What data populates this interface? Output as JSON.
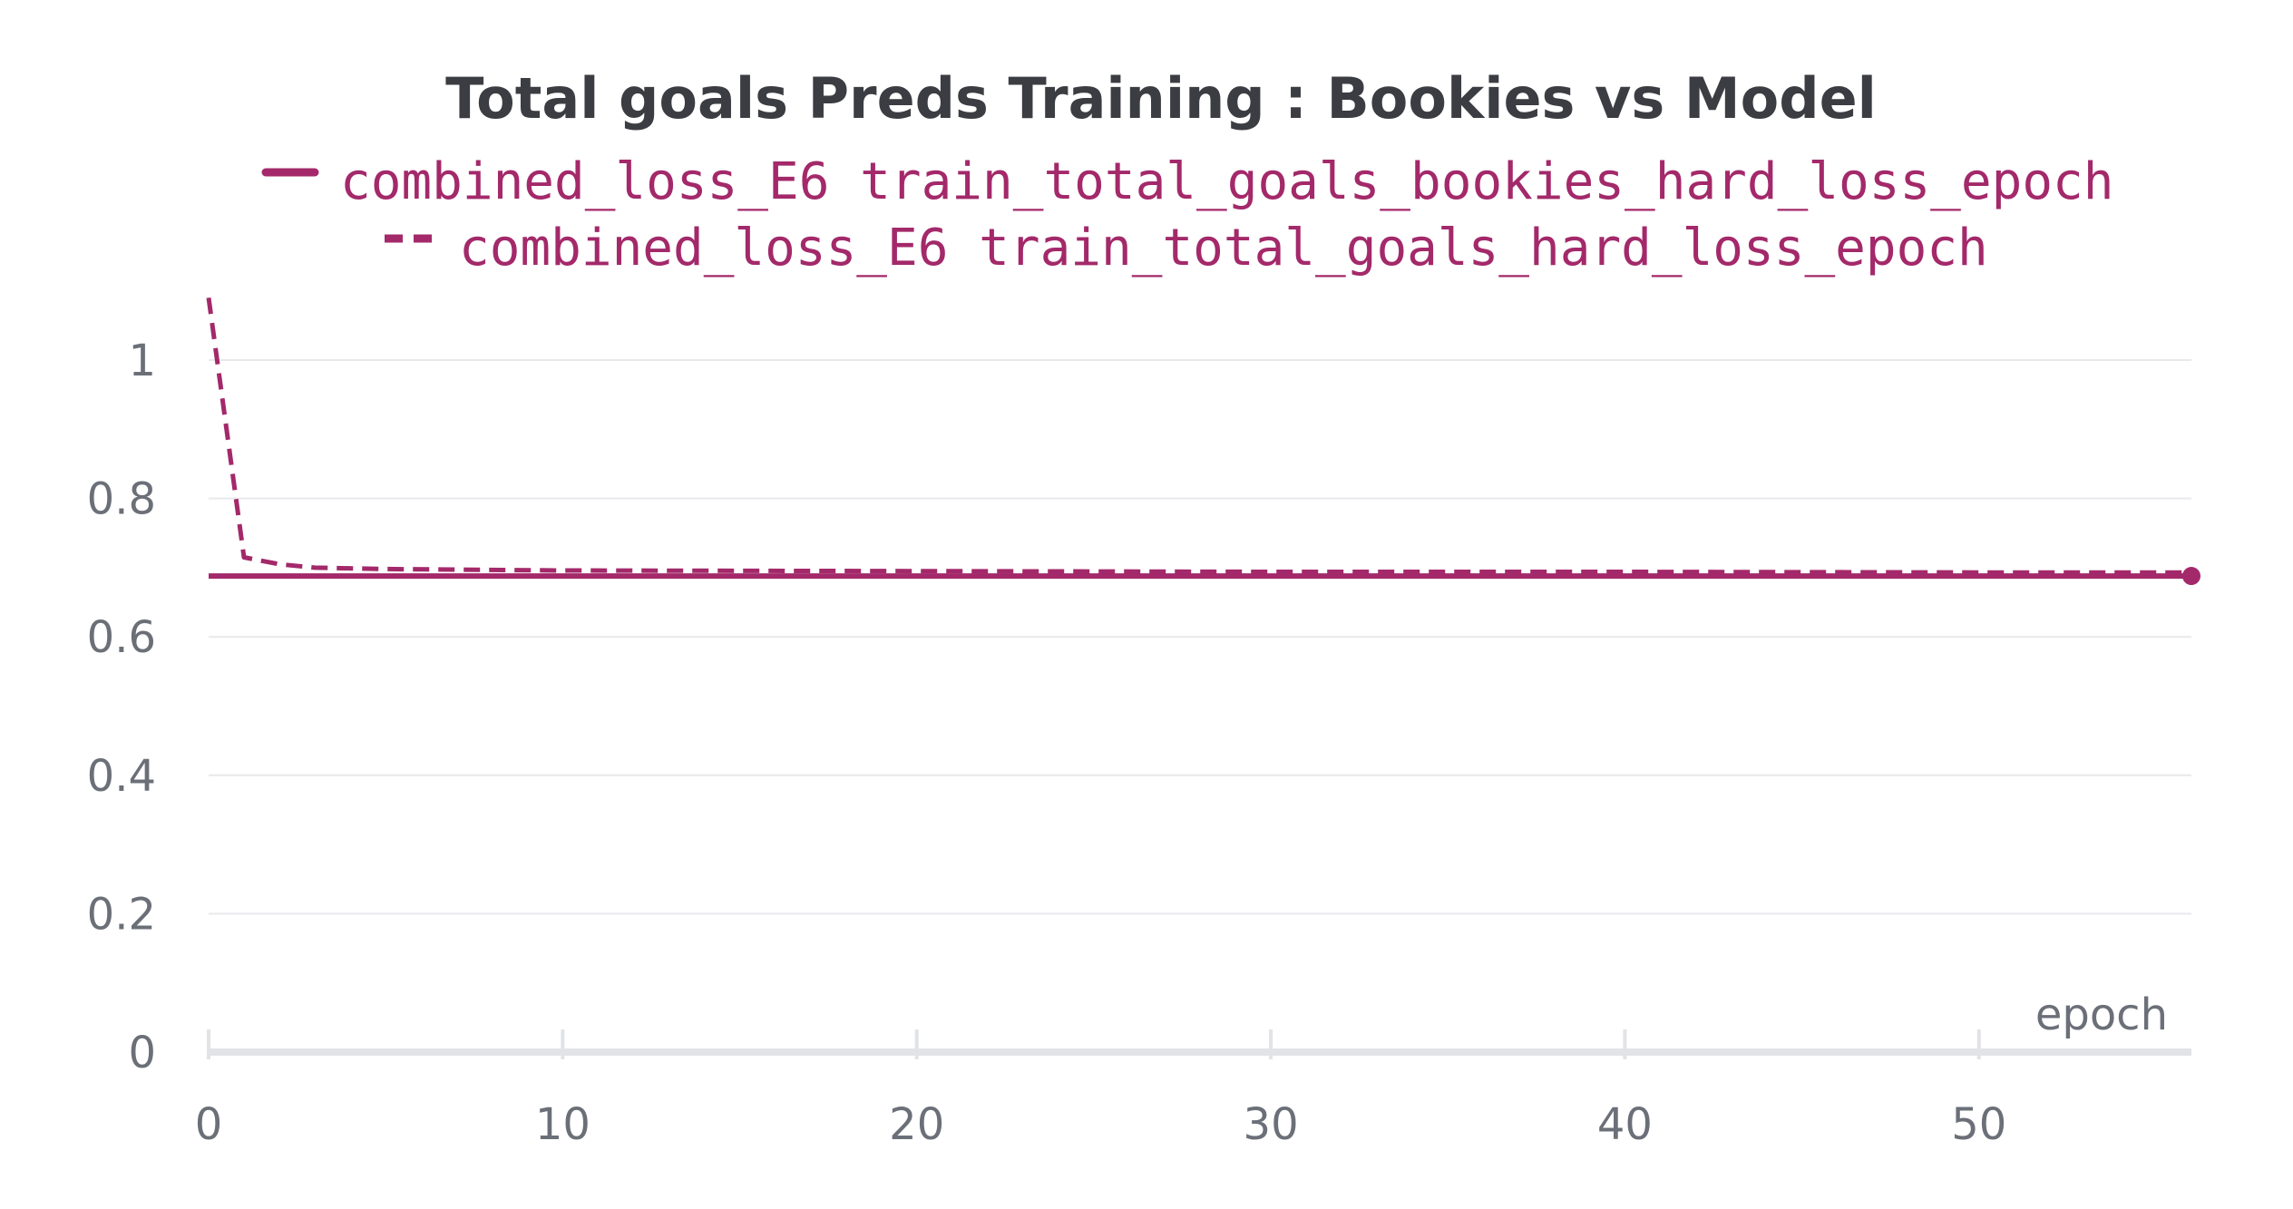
{
  "chart_data": {
    "type": "line",
    "title": "Total goals Preds Training : Bookies vs Model",
    "xlabel": "epoch",
    "ylabel": "",
    "xlim": [
      0,
      56
    ],
    "ylim": [
      0,
      1.1
    ],
    "x_ticks": [
      0,
      10,
      20,
      30,
      40,
      50
    ],
    "y_ticks": [
      0,
      0.2,
      0.4,
      0.6,
      0.8,
      1
    ],
    "x_tick_labels": [
      "0",
      "10",
      "20",
      "30",
      "40",
      "50"
    ],
    "y_tick_labels": [
      "0",
      "0.2",
      "0.4",
      "0.6",
      "0.8",
      "1"
    ],
    "grid": true,
    "legend_position": "top-center",
    "color": "#a3296a",
    "series": [
      {
        "name": "combined_loss_E6 train_total_goals_bookies_hard_loss_epoch",
        "style": "solid",
        "x": [
          0,
          10,
          20,
          30,
          40,
          50,
          56
        ],
        "values": [
          0.688,
          0.688,
          0.688,
          0.688,
          0.688,
          0.688,
          0.688
        ]
      },
      {
        "name": "combined_loss_E6 train_total_goals_hard_loss_epoch",
        "style": "dashed",
        "x": [
          0,
          1,
          2,
          3,
          5,
          10,
          20,
          30,
          40,
          50,
          56
        ],
        "values": [
          1.09,
          0.715,
          0.705,
          0.7,
          0.698,
          0.696,
          0.695,
          0.694,
          0.694,
          0.693,
          0.693
        ]
      }
    ]
  }
}
